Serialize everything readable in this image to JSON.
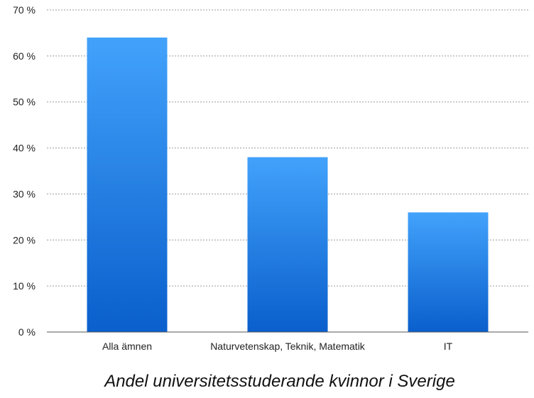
{
  "chart_data": {
    "type": "bar",
    "categories": [
      "Alla ämnen",
      "Naturvetenskap, Teknik, Matematik",
      "IT"
    ],
    "values": [
      64,
      38,
      26
    ],
    "unit": "%",
    "ylim": [
      0,
      70
    ],
    "yticks": [
      0,
      10,
      20,
      30,
      40,
      50,
      60,
      70
    ],
    "ytick_labels": [
      "0 %",
      "10 %",
      "20 %",
      "30 %",
      "40 %",
      "50 %",
      "60 %",
      "70 %"
    ],
    "grid": true,
    "caption": "Andel universitetsstuderande kvinnor i Sverige",
    "colors": {
      "bar_top": "#42a2fb",
      "bar_bottom": "#0a5fcc"
    }
  }
}
